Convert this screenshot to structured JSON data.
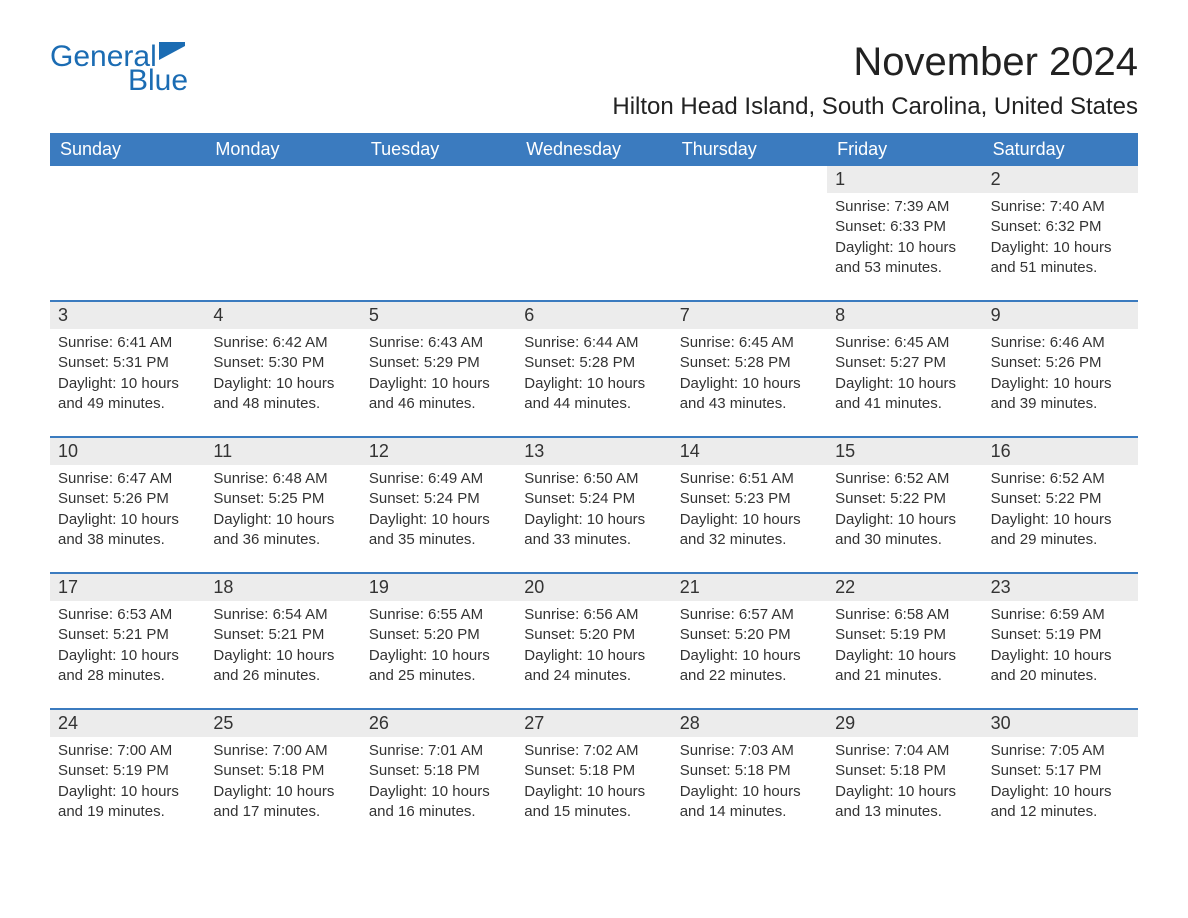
{
  "logo": {
    "general": "General",
    "blue": "Blue",
    "flag_color": "#1b6cb3"
  },
  "title": {
    "month": "November 2024",
    "location": "Hilton Head Island, South Carolina, United States"
  },
  "colors": {
    "header_bg": "#3b7bbf",
    "header_text": "#ffffff",
    "daynum_bg": "#ececec",
    "border": "#3b7bbf",
    "text": "#333333",
    "logo": "#1b6cb3",
    "background": "#ffffff"
  },
  "day_names": [
    "Sunday",
    "Monday",
    "Tuesday",
    "Wednesday",
    "Thursday",
    "Friday",
    "Saturday"
  ],
  "weeks": [
    [
      {
        "empty": true
      },
      {
        "empty": true
      },
      {
        "empty": true
      },
      {
        "empty": true
      },
      {
        "empty": true
      },
      {
        "num": "1",
        "sunrise": "Sunrise: 7:39 AM",
        "sunset": "Sunset: 6:33 PM",
        "daylight": "Daylight: 10 hours and 53 minutes."
      },
      {
        "num": "2",
        "sunrise": "Sunrise: 7:40 AM",
        "sunset": "Sunset: 6:32 PM",
        "daylight": "Daylight: 10 hours and 51 minutes."
      }
    ],
    [
      {
        "num": "3",
        "sunrise": "Sunrise: 6:41 AM",
        "sunset": "Sunset: 5:31 PM",
        "daylight": "Daylight: 10 hours and 49 minutes."
      },
      {
        "num": "4",
        "sunrise": "Sunrise: 6:42 AM",
        "sunset": "Sunset: 5:30 PM",
        "daylight": "Daylight: 10 hours and 48 minutes."
      },
      {
        "num": "5",
        "sunrise": "Sunrise: 6:43 AM",
        "sunset": "Sunset: 5:29 PM",
        "daylight": "Daylight: 10 hours and 46 minutes."
      },
      {
        "num": "6",
        "sunrise": "Sunrise: 6:44 AM",
        "sunset": "Sunset: 5:28 PM",
        "daylight": "Daylight: 10 hours and 44 minutes."
      },
      {
        "num": "7",
        "sunrise": "Sunrise: 6:45 AM",
        "sunset": "Sunset: 5:28 PM",
        "daylight": "Daylight: 10 hours and 43 minutes."
      },
      {
        "num": "8",
        "sunrise": "Sunrise: 6:45 AM",
        "sunset": "Sunset: 5:27 PM",
        "daylight": "Daylight: 10 hours and 41 minutes."
      },
      {
        "num": "9",
        "sunrise": "Sunrise: 6:46 AM",
        "sunset": "Sunset: 5:26 PM",
        "daylight": "Daylight: 10 hours and 39 minutes."
      }
    ],
    [
      {
        "num": "10",
        "sunrise": "Sunrise: 6:47 AM",
        "sunset": "Sunset: 5:26 PM",
        "daylight": "Daylight: 10 hours and 38 minutes."
      },
      {
        "num": "11",
        "sunrise": "Sunrise: 6:48 AM",
        "sunset": "Sunset: 5:25 PM",
        "daylight": "Daylight: 10 hours and 36 minutes."
      },
      {
        "num": "12",
        "sunrise": "Sunrise: 6:49 AM",
        "sunset": "Sunset: 5:24 PM",
        "daylight": "Daylight: 10 hours and 35 minutes."
      },
      {
        "num": "13",
        "sunrise": "Sunrise: 6:50 AM",
        "sunset": "Sunset: 5:24 PM",
        "daylight": "Daylight: 10 hours and 33 minutes."
      },
      {
        "num": "14",
        "sunrise": "Sunrise: 6:51 AM",
        "sunset": "Sunset: 5:23 PM",
        "daylight": "Daylight: 10 hours and 32 minutes."
      },
      {
        "num": "15",
        "sunrise": "Sunrise: 6:52 AM",
        "sunset": "Sunset: 5:22 PM",
        "daylight": "Daylight: 10 hours and 30 minutes."
      },
      {
        "num": "16",
        "sunrise": "Sunrise: 6:52 AM",
        "sunset": "Sunset: 5:22 PM",
        "daylight": "Daylight: 10 hours and 29 minutes."
      }
    ],
    [
      {
        "num": "17",
        "sunrise": "Sunrise: 6:53 AM",
        "sunset": "Sunset: 5:21 PM",
        "daylight": "Daylight: 10 hours and 28 minutes."
      },
      {
        "num": "18",
        "sunrise": "Sunrise: 6:54 AM",
        "sunset": "Sunset: 5:21 PM",
        "daylight": "Daylight: 10 hours and 26 minutes."
      },
      {
        "num": "19",
        "sunrise": "Sunrise: 6:55 AM",
        "sunset": "Sunset: 5:20 PM",
        "daylight": "Daylight: 10 hours and 25 minutes."
      },
      {
        "num": "20",
        "sunrise": "Sunrise: 6:56 AM",
        "sunset": "Sunset: 5:20 PM",
        "daylight": "Daylight: 10 hours and 24 minutes."
      },
      {
        "num": "21",
        "sunrise": "Sunrise: 6:57 AM",
        "sunset": "Sunset: 5:20 PM",
        "daylight": "Daylight: 10 hours and 22 minutes."
      },
      {
        "num": "22",
        "sunrise": "Sunrise: 6:58 AM",
        "sunset": "Sunset: 5:19 PM",
        "daylight": "Daylight: 10 hours and 21 minutes."
      },
      {
        "num": "23",
        "sunrise": "Sunrise: 6:59 AM",
        "sunset": "Sunset: 5:19 PM",
        "daylight": "Daylight: 10 hours and 20 minutes."
      }
    ],
    [
      {
        "num": "24",
        "sunrise": "Sunrise: 7:00 AM",
        "sunset": "Sunset: 5:19 PM",
        "daylight": "Daylight: 10 hours and 19 minutes."
      },
      {
        "num": "25",
        "sunrise": "Sunrise: 7:00 AM",
        "sunset": "Sunset: 5:18 PM",
        "daylight": "Daylight: 10 hours and 17 minutes."
      },
      {
        "num": "26",
        "sunrise": "Sunrise: 7:01 AM",
        "sunset": "Sunset: 5:18 PM",
        "daylight": "Daylight: 10 hours and 16 minutes."
      },
      {
        "num": "27",
        "sunrise": "Sunrise: 7:02 AM",
        "sunset": "Sunset: 5:18 PM",
        "daylight": "Daylight: 10 hours and 15 minutes."
      },
      {
        "num": "28",
        "sunrise": "Sunrise: 7:03 AM",
        "sunset": "Sunset: 5:18 PM",
        "daylight": "Daylight: 10 hours and 14 minutes."
      },
      {
        "num": "29",
        "sunrise": "Sunrise: 7:04 AM",
        "sunset": "Sunset: 5:18 PM",
        "daylight": "Daylight: 10 hours and 13 minutes."
      },
      {
        "num": "30",
        "sunrise": "Sunrise: 7:05 AM",
        "sunset": "Sunset: 5:17 PM",
        "daylight": "Daylight: 10 hours and 12 minutes."
      }
    ]
  ]
}
